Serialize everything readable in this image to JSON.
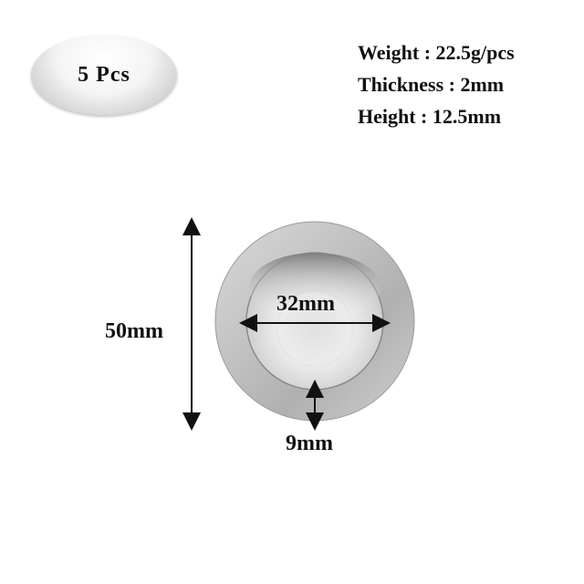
{
  "badge": {
    "label": "5 Pcs"
  },
  "specs": [
    {
      "text": "Weight : 22.5g/pcs"
    },
    {
      "text": "Thickness : 2mm"
    },
    {
      "text": "Height : 12.5mm"
    }
  ],
  "dimensions": {
    "outer_diameter": "50mm",
    "inner_diameter": "32mm",
    "rim_width": "9mm"
  },
  "colors": {
    "metal_light": "#e8e8e8",
    "metal_mid": "#bcbcbc",
    "metal_dark": "#8e8e8e",
    "text": "#111111"
  }
}
